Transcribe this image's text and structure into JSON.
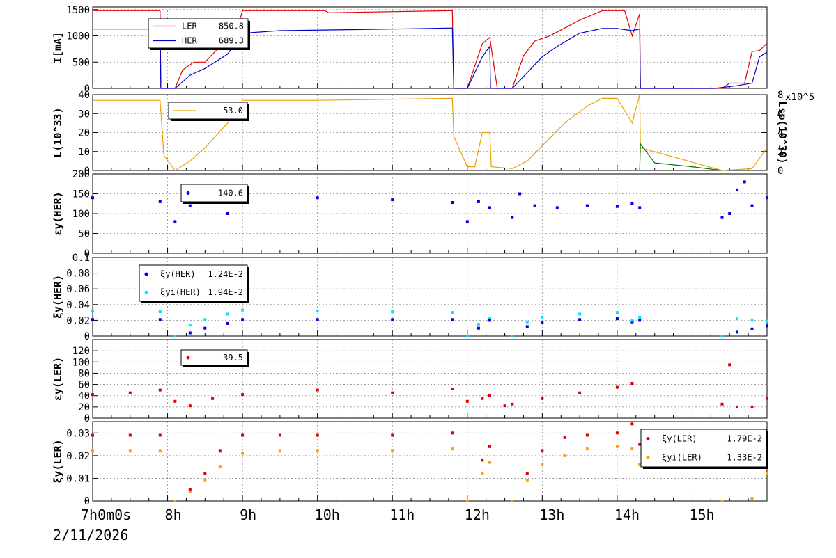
{
  "date_label": "2/11/2026",
  "x_tick_labels": [
    {
      "h": 7,
      "label": "7h0m0s"
    },
    {
      "h": 8,
      "label": "8h"
    },
    {
      "h": 9,
      "label": "9h"
    },
    {
      "h": 10,
      "label": "10h"
    },
    {
      "h": 11,
      "label": "11h"
    },
    {
      "h": 12,
      "label": "12h"
    },
    {
      "h": 13,
      "label": "13h"
    },
    {
      "h": 14,
      "label": "14h"
    },
    {
      "h": 15,
      "label": "15h"
    }
  ],
  "chart_data": [
    {
      "type": "line",
      "ylabel": "I[mA]",
      "xlim": [
        7.0,
        16.0
      ],
      "ylim": [
        0,
        1550
      ],
      "yticks": [
        0,
        500,
        1000,
        1500
      ],
      "legend": [
        {
          "name": "LER",
          "value": "850.8",
          "color": "#e00000",
          "marker": "line"
        },
        {
          "name": "HER",
          "value": "689.3",
          "color": "#0000c8",
          "marker": "line"
        }
      ],
      "series": [
        {
          "name": "LER",
          "color": "#e00000",
          "x": [
            7.0,
            7.9,
            7.91,
            8.1,
            8.2,
            8.35,
            8.5,
            8.7,
            8.9,
            9.0,
            10.1,
            10.15,
            11.8,
            11.82,
            12.0,
            12.2,
            12.3,
            12.4,
            12.6,
            12.75,
            12.9,
            13.1,
            13.3,
            13.5,
            13.8,
            14.1,
            14.2,
            14.3,
            14.31,
            15.4,
            15.5,
            15.7,
            15.8,
            15.9,
            16.0
          ],
          "y": [
            1480,
            1480,
            0,
            0,
            350,
            500,
            500,
            800,
            1000,
            1480,
            1480,
            1440,
            1480,
            0,
            0,
            850,
            970,
            0,
            0,
            620,
            900,
            1000,
            1150,
            1300,
            1480,
            1480,
            1000,
            1420,
            0,
            0,
            100,
            100,
            700,
            720,
            860
          ]
        },
        {
          "name": "HER",
          "color": "#0000c8",
          "x": [
            7.0,
            7.9,
            7.91,
            8.1,
            8.3,
            8.5,
            8.8,
            9.0,
            9.5,
            10.5,
            11.0,
            11.5,
            11.8,
            11.82,
            12.0,
            12.2,
            12.3,
            12.31,
            12.6,
            12.8,
            13.0,
            13.2,
            13.5,
            13.8,
            14.0,
            14.2,
            14.3,
            14.31,
            15.3,
            15.6,
            15.8,
            15.9,
            16.0
          ],
          "y": [
            1130,
            1130,
            0,
            0,
            250,
            380,
            650,
            1050,
            1100,
            1120,
            1130,
            1140,
            1150,
            0,
            0,
            600,
            800,
            0,
            0,
            300,
            600,
            800,
            1050,
            1140,
            1140,
            1100,
            1130,
            0,
            0,
            50,
            100,
            600,
            690
          ]
        }
      ]
    },
    {
      "type": "line",
      "ylabel": "L(10^33)",
      "y2label": "Lsp(10^30)",
      "xlim": [
        7.0,
        16.0
      ],
      "ylim": [
        0,
        40
      ],
      "yticks": [
        0,
        10,
        20,
        30,
        40
      ],
      "y2lim": [
        0,
        8
      ],
      "y2ticks": [
        0,
        2,
        4,
        6,
        8
      ],
      "y2_exponent": "x10^5",
      "legend": [
        {
          "name": "",
          "value": "53.0",
          "color": "#e8a000",
          "marker": "line"
        }
      ],
      "series": [
        {
          "name": "L",
          "color": "#e8a000",
          "x": [
            7.0,
            7.5,
            7.9,
            7.95,
            8.1,
            8.3,
            8.5,
            8.8,
            9.0,
            10.0,
            11.8,
            11.82,
            12.0,
            12.1,
            12.2,
            12.3,
            12.32,
            12.6,
            12.8,
            13.0,
            13.3,
            13.6,
            13.8,
            14.0,
            14.2,
            14.3,
            14.31,
            15.4,
            15.8,
            16.0
          ],
          "y": [
            37,
            37,
            37,
            8,
            0,
            5,
            12,
            25,
            37,
            37,
            38,
            18,
            2,
            2,
            20,
            20,
            2,
            1,
            5,
            13,
            25,
            34,
            38,
            38,
            25,
            40,
            12,
            0,
            1,
            12
          ]
        },
        {
          "name": "Lsp",
          "color": "#007000",
          "x": [
            14.3,
            14.31,
            14.5,
            15.0,
            15.4
          ],
          "y": [
            0,
            14,
            4,
            2,
            0
          ]
        }
      ]
    },
    {
      "type": "scatter",
      "ylabel": "εy(HER)",
      "xlim": [
        7.0,
        16.0
      ],
      "ylim": [
        0,
        200
      ],
      "yticks": [
        0,
        50,
        100,
        150,
        200
      ],
      "legend": [
        {
          "name": "",
          "value": "140.6",
          "color": "#0000e0",
          "marker": "dot"
        }
      ],
      "series": [
        {
          "name": "HER",
          "color": "#0000e0",
          "x": [
            7.0,
            7.9,
            8.1,
            8.3,
            8.5,
            8.8,
            9.0,
            10.0,
            11.0,
            11.8,
            12.0,
            12.15,
            12.3,
            12.6,
            12.7,
            12.9,
            13.2,
            13.6,
            14.0,
            14.2,
            14.3,
            15.4,
            15.5,
            15.6,
            15.7,
            15.8,
            16.0
          ],
          "y": [
            140,
            130,
            80,
            120,
            130,
            100,
            140,
            140,
            135,
            128,
            80,
            130,
            115,
            90,
            150,
            120,
            115,
            120,
            118,
            125,
            115,
            90,
            100,
            160,
            180,
            120,
            140
          ]
        }
      ]
    },
    {
      "type": "scatter",
      "ylabel": "ξy(HER)",
      "xlim": [
        7.0,
        16.0
      ],
      "ylim": [
        0,
        0.1
      ],
      "yticks": [
        "0",
        "0.02",
        "0.04",
        "0.06",
        "0.08",
        "0.1"
      ],
      "ytick_values": [
        0,
        0.02,
        0.04,
        0.06,
        0.08,
        0.1
      ],
      "legend": [
        {
          "name": "ξy(HER)",
          "value": "1.24E-2",
          "color": "#0000e0",
          "marker": "dot"
        },
        {
          "name": "ξyi(HER)",
          "value": "1.94E-2",
          "color": "#00e8ff",
          "marker": "dot"
        }
      ],
      "series": [
        {
          "name": "ξy(HER)",
          "color": "#0000e0",
          "x": [
            7.0,
            7.9,
            8.1,
            8.3,
            8.5,
            8.8,
            9.0,
            10.0,
            11.0,
            11.8,
            12.0,
            12.15,
            12.3,
            12.6,
            12.8,
            13.0,
            13.5,
            14.0,
            14.2,
            14.3,
            15.4,
            15.6,
            15.8,
            16.0
          ],
          "y": [
            0.021,
            0.021,
            0.0,
            0.004,
            0.01,
            0.016,
            0.021,
            0.021,
            0.021,
            0.021,
            0.0,
            0.01,
            0.02,
            0.0,
            0.012,
            0.017,
            0.021,
            0.022,
            0.018,
            0.02,
            0.0,
            0.005,
            0.009,
            0.013
          ]
        },
        {
          "name": "ξyi(HER)",
          "color": "#00e8ff",
          "x": [
            7.0,
            7.9,
            8.1,
            8.3,
            8.5,
            8.8,
            9.0,
            10.0,
            11.0,
            11.8,
            12.0,
            12.15,
            12.3,
            12.6,
            12.8,
            13.0,
            13.5,
            14.0,
            14.2,
            14.3,
            15.4,
            15.6,
            15.8,
            16.0
          ],
          "y": [
            0.032,
            0.031,
            0.0,
            0.014,
            0.021,
            0.028,
            0.033,
            0.032,
            0.031,
            0.03,
            0.0,
            0.015,
            0.023,
            0.0,
            0.018,
            0.024,
            0.028,
            0.03,
            0.02,
            0.024,
            0.0,
            0.022,
            0.02,
            0.019
          ]
        }
      ]
    },
    {
      "type": "scatter",
      "ylabel": "εy(LER)",
      "xlim": [
        7.0,
        16.0
      ],
      "ylim": [
        0,
        140
      ],
      "yticks": [
        0,
        20,
        40,
        60,
        80,
        100,
        120
      ],
      "legend": [
        {
          "name": "",
          "value": "39.5",
          "color": "#e00000",
          "marker": "dot"
        }
      ],
      "series": [
        {
          "name": "LER",
          "color": "#e00000",
          "x": [
            7.0,
            7.5,
            7.9,
            8.1,
            8.3,
            8.6,
            9.0,
            10.0,
            11.0,
            11.8,
            12.0,
            12.2,
            12.3,
            12.5,
            12.6,
            13.0,
            13.5,
            14.0,
            14.2,
            15.4,
            15.5,
            15.6,
            15.8,
            16.0
          ],
          "y": [
            42,
            45,
            50,
            30,
            22,
            35,
            42,
            50,
            45,
            52,
            30,
            35,
            40,
            22,
            25,
            35,
            45,
            55,
            62,
            25,
            95,
            20,
            20,
            35
          ]
        }
      ]
    },
    {
      "type": "scatter",
      "ylabel": "ξy(LER)",
      "xlim": [
        7.0,
        16.0
      ],
      "ylim": [
        0,
        0.035
      ],
      "yticks": [
        "0",
        "0.01",
        "0.02",
        "0.03"
      ],
      "ytick_values": [
        0,
        0.01,
        0.02,
        0.03
      ],
      "legend": [
        {
          "name": "ξy(LER)",
          "value": "1.79E-2",
          "color": "#e00000",
          "marker": "dot"
        },
        {
          "name": "ξyi(LER)",
          "value": "1.33E-2",
          "color": "#ffa000",
          "marker": "dot"
        }
      ],
      "series": [
        {
          "name": "ξy(LER)",
          "color": "#e00000",
          "x": [
            7.0,
            7.5,
            7.9,
            8.1,
            8.3,
            8.5,
            8.7,
            9.0,
            9.5,
            10.0,
            11.0,
            11.8,
            12.0,
            12.2,
            12.3,
            12.6,
            12.8,
            13.0,
            13.3,
            13.6,
            14.0,
            14.2,
            14.3,
            15.4,
            15.8,
            16.0
          ],
          "y": [
            0.029,
            0.029,
            0.029,
            0.0,
            0.005,
            0.012,
            0.022,
            0.029,
            0.029,
            0.029,
            0.029,
            0.03,
            0.0,
            0.018,
            0.024,
            0.0,
            0.012,
            0.022,
            0.028,
            0.029,
            0.03,
            0.034,
            0.025,
            0.0,
            0.001,
            0.017
          ]
        },
        {
          "name": "ξyi(LER)",
          "color": "#ffa000",
          "x": [
            7.0,
            7.5,
            7.9,
            8.1,
            8.3,
            8.5,
            8.7,
            9.0,
            9.5,
            10.0,
            11.0,
            11.8,
            12.0,
            12.2,
            12.3,
            12.6,
            12.8,
            13.0,
            13.3,
            13.6,
            14.0,
            14.2,
            14.3,
            15.4,
            15.8,
            16.0
          ],
          "y": [
            0.022,
            0.022,
            0.022,
            0.0,
            0.004,
            0.009,
            0.015,
            0.021,
            0.022,
            0.022,
            0.022,
            0.023,
            0.0,
            0.012,
            0.017,
            0.0,
            0.009,
            0.016,
            0.02,
            0.023,
            0.024,
            0.023,
            0.016,
            0.0,
            0.001,
            0.012
          ]
        }
      ]
    }
  ]
}
